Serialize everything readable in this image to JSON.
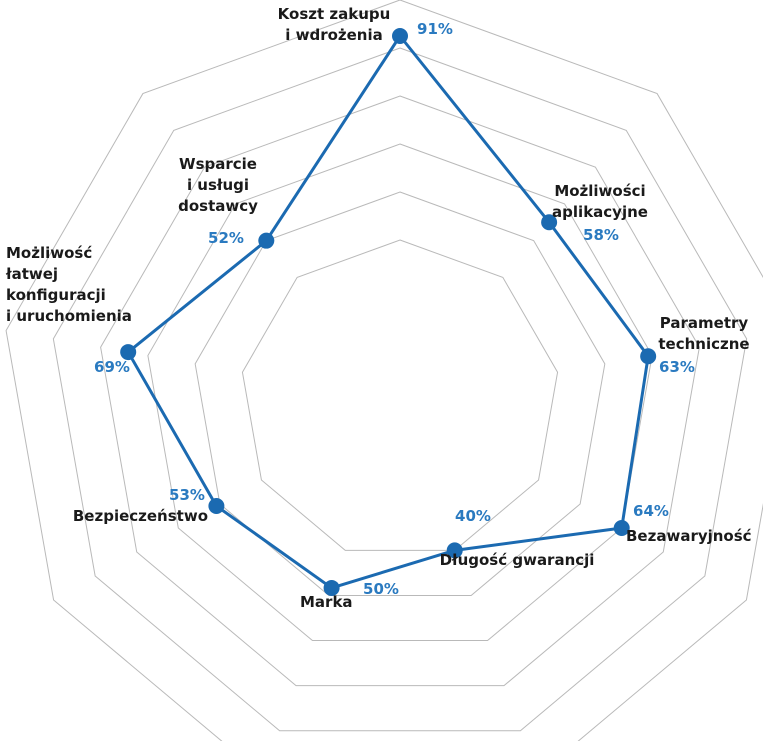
{
  "chart_data": {
    "type": "radar",
    "title": "",
    "categories": [
      "Koszt zakupu\ni wdrożenia",
      "Możliwości\naplikacyjne",
      "Parametry\ntechniczne",
      "Bezawaryjność",
      "Długość gwarancji",
      "Marka",
      "Bezpieczeństwo",
      "Możliwość\nłatwej\nkonfiguracji\ni uruchomienia",
      "Wsparcie\ni usługi\ndostawcy"
    ],
    "series": [
      {
        "values": [
          91,
          58,
          63,
          64,
          40,
          50,
          53,
          69,
          52
        ],
        "value_labels": [
          "91%",
          "58%",
          "63%",
          "64%",
          "40%",
          "50%",
          "53%",
          "69%",
          "52%"
        ]
      }
    ],
    "rlim": [
      0,
      100
    ],
    "grid_rings": 6,
    "grid": true,
    "legend": "none",
    "colors": {
      "series": "#1b6ab1",
      "data_label": "#2a7ac0",
      "grid": "#b9b9b9",
      "category_text": "#1a1a1a"
    }
  }
}
